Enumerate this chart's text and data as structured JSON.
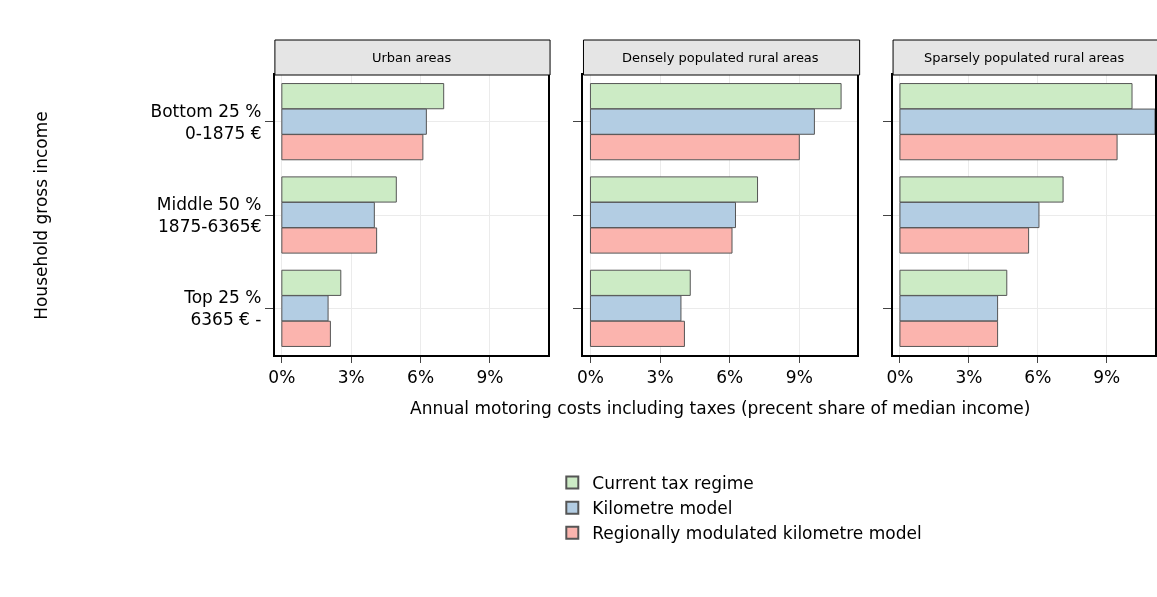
{
  "chart_data": [
    {
      "type": "bar",
      "orientation": "horizontal",
      "title": "Urban areas",
      "ylabel": "Household gross income",
      "categories": [
        "Bottom 25 %\n0-1875 €",
        "Middle 50 %\n1875-6365€",
        "Top 25 %\n6365 € -"
      ],
      "series": [
        {
          "name": "Current tax regime",
          "color": "#ccebc5",
          "values": [
            7.0,
            4.95,
            2.55
          ]
        },
        {
          "name": "Kilometre model",
          "color": "#b3cde3",
          "values": [
            6.25,
            4.0,
            2.0
          ]
        },
        {
          "name": "Regionally modulated kilometre model",
          "color": "#fbb4ae",
          "values": [
            6.1,
            4.1,
            2.1
          ]
        }
      ],
      "xlim": [
        -0.3,
        11.5
      ],
      "xticks": [
        {
          "value": 0,
          "label": "0%"
        },
        {
          "value": 3,
          "label": "3%"
        },
        {
          "value": 6,
          "label": "6%"
        },
        {
          "value": 9,
          "label": "9%"
        }
      ],
      "grid": true,
      "legend": "bottom"
    },
    {
      "type": "bar",
      "orientation": "horizontal",
      "title": "Densely populated rural areas",
      "xlabel": "Annual motoring costs including taxes (precent share of median income)",
      "categories": [
        null,
        null,
        null
      ],
      "series": [
        {
          "color": "#ccebc5",
          "values": [
            10.8,
            7.2,
            4.3
          ]
        },
        {
          "color": "#b3cde3",
          "values": [
            9.65,
            6.25,
            3.9
          ]
        },
        {
          "color": "#fbb4ae",
          "values": [
            9.0,
            6.1,
            4.05
          ]
        }
      ],
      "xlim": [
        -0.3,
        11.5
      ],
      "xticks": [
        {
          "value": 0,
          "label": "0%"
        },
        {
          "value": 3,
          "label": "3%"
        },
        {
          "value": 6,
          "label": "6%"
        },
        {
          "value": 9,
          "label": "9%"
        }
      ],
      "grid": true,
      "tick_labels": "x"
    },
    {
      "type": "bar",
      "orientation": "horizontal",
      "title": "Sparsely populated rural areas",
      "categories": [
        null,
        null,
        null
      ],
      "series": [
        {
          "color": "#ccebc5",
          "values": [
            10.1,
            7.1,
            4.65
          ]
        },
        {
          "color": "#b3cde3",
          "values": [
            11.1,
            6.05,
            4.25
          ]
        },
        {
          "color": "#fbb4ae",
          "values": [
            9.45,
            5.6,
            4.25
          ]
        }
      ],
      "xlim": [
        -0.3,
        11.1
      ],
      "xticks": [
        {
          "value": 0,
          "label": "0%"
        },
        {
          "value": 3,
          "label": "3%"
        },
        {
          "value": 6,
          "label": "6%"
        },
        {
          "value": 9,
          "label": "9%"
        }
      ],
      "grid": true,
      "tick_labels": "x"
    }
  ]
}
